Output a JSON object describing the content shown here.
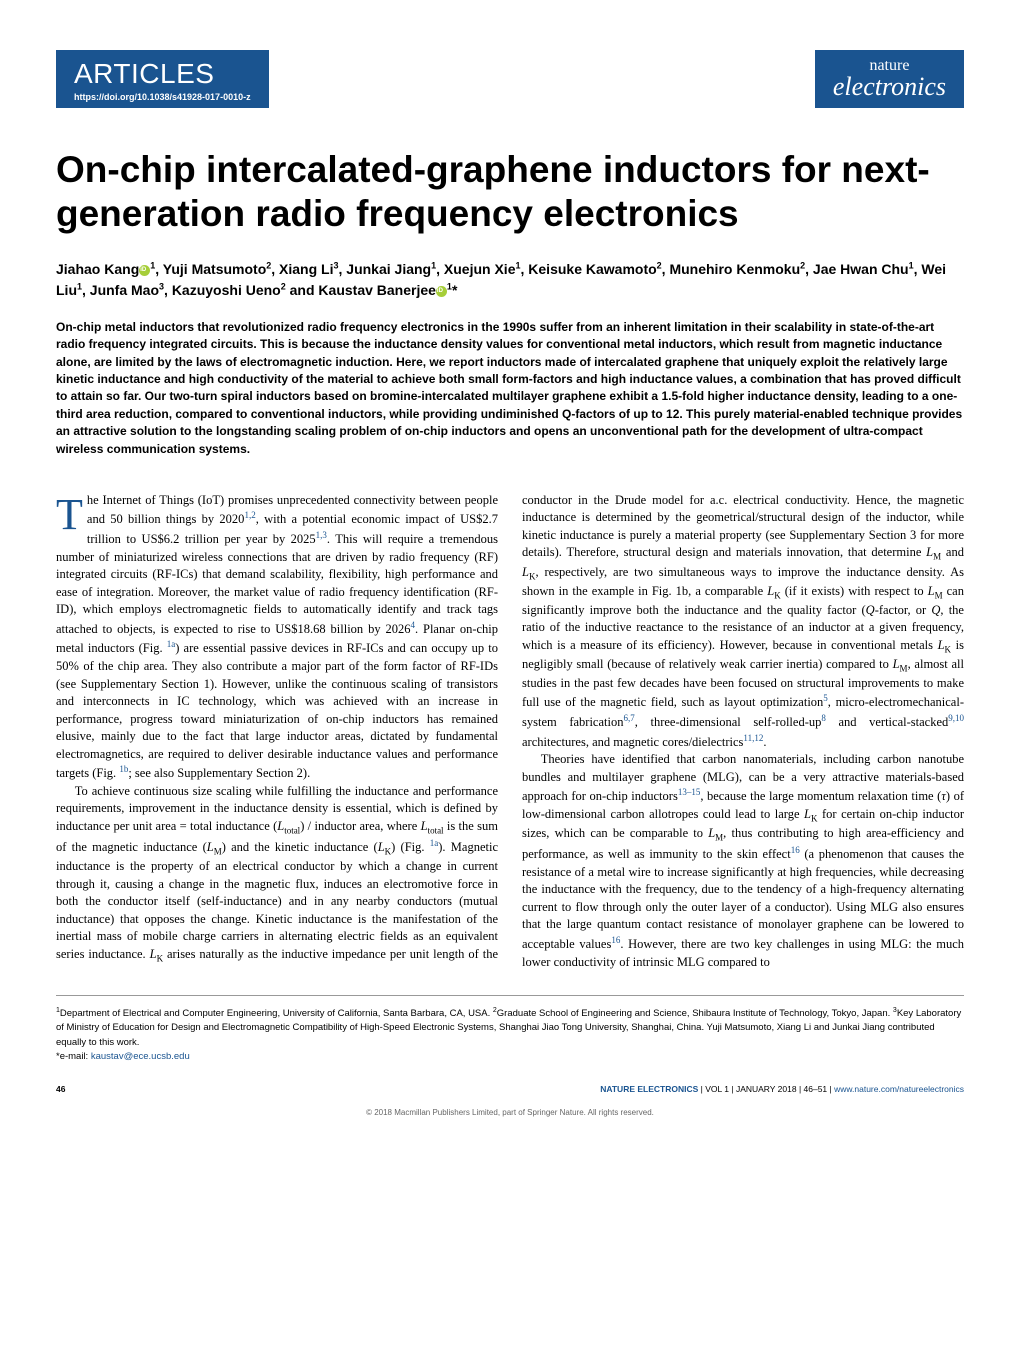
{
  "header": {
    "section_label": "ARTICLES",
    "doi": "https://doi.org/10.1038/s41928-017-0010-z",
    "journal_top": "nature",
    "journal_bottom": "electronics",
    "brand_color": "#1a5490"
  },
  "title": "On-chip intercalated-graphene inductors for next-generation radio frequency electronics",
  "authors_line1": "Jiahao Kang",
  "authors_aff1": "1",
  "authors_line2": ", Yuji Matsumoto",
  "authors_aff2": "2",
  "authors_line3": ", Xiang Li",
  "authors_aff3": "3",
  "authors_line4": ", Junkai Jiang",
  "authors_aff4": "1",
  "authors_line5": ", Xuejun Xie",
  "authors_aff5": "1",
  "authors_line6": ", Keisuke Kawamoto",
  "authors_aff6": "2",
  "authors_line7": ", Munehiro Kenmoku",
  "authors_aff7": "2",
  "authors_line8": ", Jae Hwan Chu",
  "authors_aff8": "1",
  "authors_line9": ", Wei Liu",
  "authors_aff9": "1",
  "authors_line10": ", Junfa Mao",
  "authors_aff10": "3",
  "authors_line11": ", Kazuyoshi Ueno",
  "authors_aff11": "2",
  "authors_line12": " and Kaustav Banerjee",
  "authors_aff12": "1",
  "authors_star": "*",
  "abstract": "On-chip metal inductors that revolutionized radio frequency electronics in the 1990s suffer from an inherent limitation in their scalability in state-of-the-art radio frequency integrated circuits. This is because the inductance density values for conventional metal inductors, which result from magnetic inductance alone, are limited by the laws of electromagnetic induction. Here, we report inductors made of intercalated graphene that uniquely exploit the relatively large kinetic inductance and high conductivity of the material to achieve both small form-factors and high inductance values, a combination that has proved difficult to attain so far. Our two-turn spiral inductors based on bromine-intercalated multilayer graphene exhibit a 1.5-fold higher inductance density, leading to a one-third area reduction, compared to conventional inductors, while providing undiminished Q-factors of up to 12. This purely material-enabled technique provides an attractive solution to the longstanding scaling problem of on-chip inductors and opens an unconventional path for the development of ultra-compact wireless communication systems.",
  "body": {
    "p1a": "The Internet of Things (IoT) promises unprecedented connectivity between people and 50 billion things by 2020",
    "r1": "1,2",
    "p1b": ", with a potential economic impact of US$2.7 trillion to US$6.2 trillion per year by 2025",
    "r2": "1,3",
    "p1c": ". This will require a tremendous number of miniaturized wireless connections that are driven by radio frequency (RF) integrated circuits (RF-ICs) that demand scalability, flexibility, high performance and ease of integration. Moreover, the market value of radio frequency identification (RF-ID), which employs electromagnetic fields to automatically identify and track tags attached to objects, is expected to rise to US$18.68 billion by 2026",
    "r3": "4",
    "p1d": ". Planar on-chip metal inductors (Fig. ",
    "f1a": "1a",
    "p1e": ") are essential passive devices in RF-ICs and can occupy up to 50% of the chip area. They also contribute a major part of the form factor of RF-IDs (see Supplementary Section 1). However, unlike the continuous scaling of transistors and interconnects in IC technology, which was achieved with an increase in performance, progress toward miniaturization of on-chip inductors has remained elusive, mainly due to the fact that large inductor areas, dictated by fundamental electromagnetics, are required to deliver desirable inductance values and performance targets (Fig. ",
    "f1b": "1b",
    "p1f": "; see also Supplementary Section 2).",
    "p2a": "To achieve continuous size scaling while fulfilling the inductance and performance requirements, improvement in the inductance density is essential, which is defined by inductance per unit area = total inductance (",
    "p2b": ") / inductor area, where ",
    "p2c": " is the sum of the magnetic inductance (",
    "p2d": ") and the kinetic inductance (",
    "p2e": ") (Fig. ",
    "p2f": "). Magnetic inductance is the property of an electrical conductor by which a change in current through it, causing a change in the magnetic flux, induces an electromotive force in both the conductor itself (self-inductance) and in any nearby conductors (mutual inductance) that opposes the change. Kinetic inductance is the manifestation of the inertial mass of mobile charge carriers in alternating electric fields as an equivalent series inductance. ",
    "p2g": " arises naturally as the inductive impedance per unit length of the conductor in the Drude model for a.c. electrical conductivity. Hence, the magnetic inductance is determined by the geometrical/structural design of the inductor, while kinetic inductance is purely a material property (see Supplementary Section 3 for more details). Therefore, structural design and materials innovation, that determine ",
    "p2h": " and ",
    "p2i": ", respectively, are two simultaneous ways to improve the inductance density. As shown in the example in Fig. 1b, a comparable ",
    "p2j": " (if it exists) with respect to ",
    "p2k": " can significantly improve both the inductance and the quality factor (",
    "p2l": "-factor, or ",
    "p2m": ", the ratio of the inductive reactance to the resistance of an inductor at a given frequency, which is a measure of its efficiency). However, because in conventional metals ",
    "p2n": " is negligibly small (because of relatively weak carrier inertia) compared to ",
    "p2o": ", almost all studies in the past few decades have been focused on structural improvements to make full use of the magnetic field, such as layout optimization",
    "r5": "5",
    "p2p": ", micro-electromechanical-system fabrication",
    "r67": "6,7",
    "p2q": ", three-dimensional self-rolled-up",
    "r8": "8",
    "p2r": " and vertical-stacked",
    "r910": "9,10",
    "p2s": " architectures, and magnetic cores/dielectrics",
    "r1112": "11,12",
    "p2t": ".",
    "p3a": "Theories have identified that carbon nanomaterials, including carbon nanotube bundles and multilayer graphene (MLG), can be a very attractive materials-based approach for on-chip inductors",
    "r1315": "13–15",
    "p3b": ", because the large momentum relaxation time (",
    "p3c": ") of low-dimensional carbon allotropes could lead to large ",
    "p3d": " for certain on-chip inductor sizes, which can be comparable to ",
    "p3e": ", thus contributing to high area-efficiency and performance, as well as immunity to the skin effect",
    "r16a": "16",
    "p3f": " (a phenomenon that causes the resistance of a metal wire to increase significantly at high frequencies, while decreasing the inductance with the frequency, due to the tendency of a high-frequency alternating current to flow through only the outer layer of a conductor). Using MLG also ensures that the large quantum contact resistance of monolayer graphene can be lowered to acceptable values",
    "r16b": "16",
    "p3g": ". However, there are two key challenges in using MLG: the much lower conductivity of intrinsic MLG compared to"
  },
  "vars": {
    "Ltotal": "L",
    "Ltotal_sub": "total",
    "LM": "L",
    "LM_sub": "M",
    "LK": "L",
    "LK_sub": "K",
    "Q": "Q",
    "tau": "τ"
  },
  "affiliations": {
    "a1_num": "1",
    "a1": "Department of Electrical and Computer Engineering, University of California, Santa Barbara, CA, USA. ",
    "a2_num": "2",
    "a2": "Graduate School of Engineering and Science, Shibaura Institute of Technology, Tokyo, Japan. ",
    "a3_num": "3",
    "a3": "Key Laboratory of Ministry of Education for Design and Electromagnetic Compatibility of High-Speed Electronic Systems, Shanghai Jiao Tong University, Shanghai, China. Yuji Matsumoto, Xiang Li and Junkai Jiang contributed equally to this work. ",
    "email_label": "*e-mail: ",
    "email": "kaustav@ece.ucsb.edu"
  },
  "footer": {
    "page_num": "46",
    "cite1": "NATURE ELECTRONICS",
    "cite2": " | VOL 1 | JANUARY 2018 | 46–51 | ",
    "url": "www.nature.com/natureelectronics",
    "copyright": "© 2018 Macmillan Publishers Limited, part of Springer Nature. All rights reserved."
  }
}
